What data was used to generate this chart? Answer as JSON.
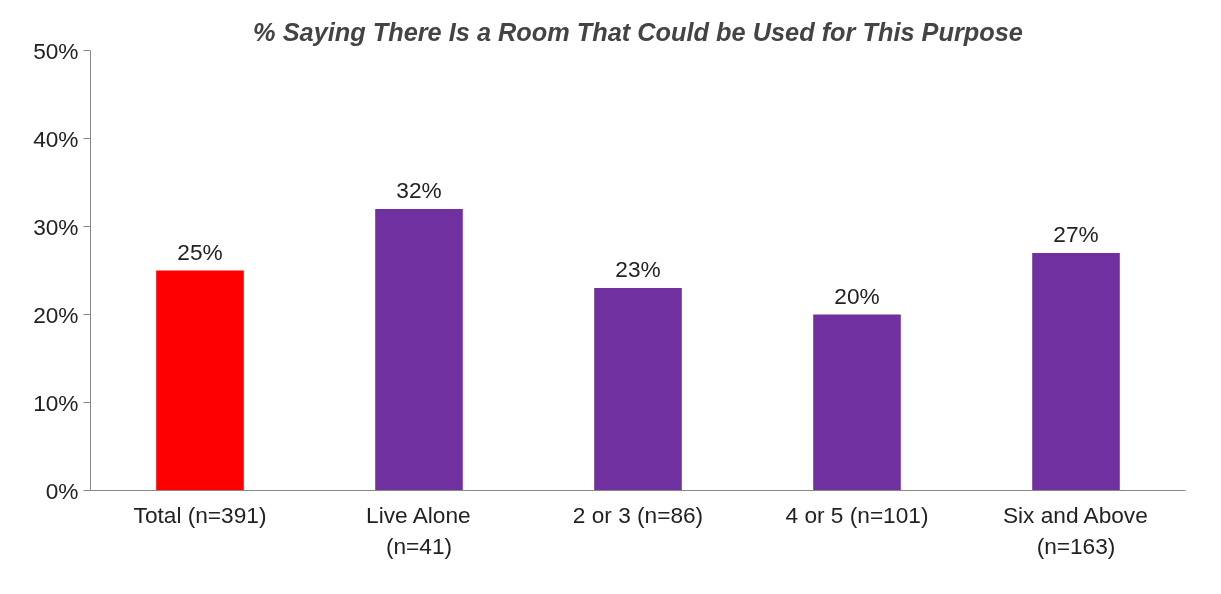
{
  "chart_data": {
    "type": "bar",
    "title": "% Saying There Is a Room That Could be Used for This Purpose",
    "categories": [
      "Total (n=391)",
      "Live Alone (n=41)",
      "2 or 3 (n=86)",
      "4 or 5 (n=101)",
      "Six and Above (n=163)"
    ],
    "values": [
      25,
      32,
      23,
      20,
      27
    ],
    "colors": [
      "#ff0000",
      "#7030a0",
      "#7030a0",
      "#7030a0",
      "#7030a0"
    ],
    "value_labels": [
      "25%",
      "32%",
      "23%",
      "20%",
      "27%"
    ],
    "ylim": [
      0,
      50
    ],
    "yticks": [
      {
        "value": 0,
        "label": "0%"
      },
      {
        "value": 10,
        "label": "10%"
      },
      {
        "value": 20,
        "label": "20%"
      },
      {
        "value": 30,
        "label": "30%"
      },
      {
        "value": 40,
        "label": "40%"
      },
      {
        "value": 50,
        "label": "50%"
      }
    ],
    "grid": false
  }
}
